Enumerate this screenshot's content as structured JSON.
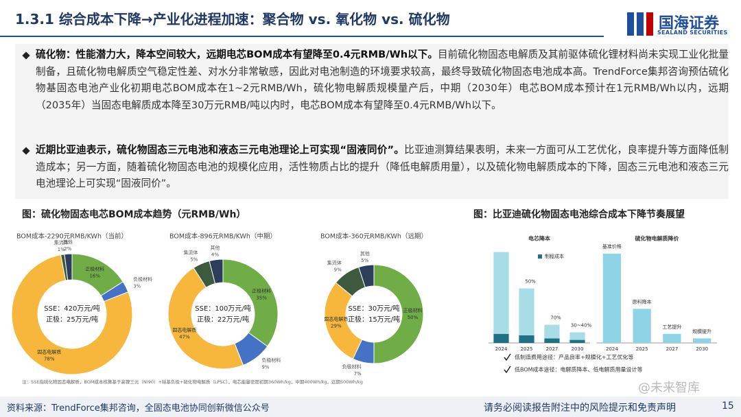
{
  "header": {
    "title": "1.3.1 综合成本下降→产业化进程加速：聚合物 vs. 氧化物 vs. 硫化物",
    "logo_cn": "国海证券",
    "logo_en": "SEALAND SECURITIES"
  },
  "bullets": [
    {
      "lead": "硫化物：性能潜力大，降本空间较大，远期电芯BOM成本有望降至0.4元RMB/Wh以下。",
      "text": "目前硫化物固态电解质及其前驱体硫化锂材料尚未实现工业化批量制备，且硫化物电解质空气稳定性差、对水分非常敏感，因此对电池制造的环境要求较高，最终导致硫化物固态电池成本高。TrendForce集邦咨询预估硫化物基固态电池产业化初期电芯BOM成本在1~2元RMB/Wh，硫化物电解质规模量产后，中期（2030年）电芯BOM成本预计在1元RMB/Wh以内，远期（2035年）当固态电解质成本降至30万元RMB/吨以内时，电芯BOM成本有望降至0.4元RMB/Wh以下。"
    },
    {
      "lead": "近期比亚迪表示，硫化物固态三元电池和液态三元电池理论上可实现“固液同价”。",
      "text": "比亚迪测算结果表明，未来一方面可从工艺优化，良率提升等方面降低制造成本；另一方面，随着硫化物固态电池的规模化应用，活性物质占比的提升（降低电解质用量），以及硫化物电解质成本的下降，固态三元电池和液态三元电池理论上可实现“固液同价”。"
    }
  ],
  "figures": [
    {
      "title": "图：硫化物固态电芯BOM成本趋势（元RMB/Wh）",
      "note": "注：SSE指硫化物固态电解质，BOM成本核算基于高镍三元（NI90）+硅基负极+硫化物电解质（LPSC），电芯能量密度初期360Wh/kg，中期400Wh/kg，远期500Wh/kg"
    },
    {
      "title": "图：比亚迪硫化物固态电池综合成本下降节奏展望",
      "notes": [
        "低制造费用途径：产品良率+规模化+工艺优化等",
        "低BOM成本途径：电解质降本、低电解质用量设计等"
      ]
    }
  ],
  "chart_data": [
    {
      "type": "donut",
      "subtitle": "BOM成本-2290元RMB/KWh（当前）",
      "center_text": [
        "SSE：420万元/吨",
        "正极：25万元/吨"
      ],
      "labels": [
        "正极材料",
        "负极材料",
        "固态电解质",
        "集流体",
        "其他"
      ],
      "values": [
        16,
        3,
        78,
        1,
        2
      ],
      "value_labels": [
        "16%",
        "3%",
        "78%",
        "1%",
        "2%"
      ],
      "colors": [
        "#70ad47",
        "#4472c4",
        "#f6b73c",
        "#3d5a3f",
        "#2c3e5a"
      ]
    },
    {
      "type": "donut",
      "subtitle": "BOM成本-896元RMB/KWh（中期）",
      "center_text": [
        "SSE：100万元/吨",
        "正极：22万元/吨"
      ],
      "labels": [
        "正极材料",
        "负极材料",
        "固态电解质",
        "集流体",
        "其他"
      ],
      "values": [
        35,
        9,
        47,
        5,
        4
      ],
      "value_labels": [
        "35%",
        "9%",
        "47%",
        "5%",
        "4%"
      ],
      "colors": [
        "#70ad47",
        "#4472c4",
        "#f6b73c",
        "#3d5a3f",
        "#2c3e5a"
      ]
    },
    {
      "type": "donut",
      "subtitle": "BOM成本-360元RMB/KWh（远期）",
      "center_text": [
        "SSE：30万元/吨",
        "正极：15万元/吨"
      ],
      "labels": [
        "正极材料",
        "负极材料",
        "固态电解质",
        "集流体",
        "其他"
      ],
      "values": [
        50,
        7,
        29,
        9,
        5
      ],
      "value_labels": [
        "50%",
        "7%",
        "29%",
        "9%",
        "5%"
      ],
      "colors": [
        "#70ad47",
        "#4472c4",
        "#f6b73c",
        "#3d5a3f",
        "#2c3e5a"
      ]
    },
    {
      "type": "bar",
      "title": "电芯降本",
      "categories": [
        "2024",
        "2025",
        "2027",
        "2030"
      ],
      "ylim": [
        0,
        125
      ],
      "series": [
        {
          "name": "制程成本",
          "color": "#1f7183",
          "values": [
            12,
            10,
            6,
            4
          ]
        },
        {
          "color": "#a8dde8",
          "values": [
            108,
            62,
            18,
            10
          ]
        }
      ],
      "annotations": [
        null,
        "50%",
        "70%",
        "30~40%"
      ]
    },
    {
      "type": "bar",
      "title": "硫化物电解质降价",
      "categories": [
        "2024",
        "2025",
        "2027",
        "2030"
      ],
      "ylim": [
        0,
        125
      ],
      "series": [
        {
          "color": "#8fd3e6",
          "values": [
            118,
            45,
            12,
            6
          ]
        }
      ],
      "annotations": [
        "基准价格",
        "原料降本",
        "工艺提升",
        "规模提升"
      ]
    }
  ],
  "watermark": "@未来智库",
  "footer": {
    "source": "资料来源：TrendForce集邦咨询，全固态电池协同创新微信公众号",
    "disclaimer": "请务必阅读报告附注中的风险提示和免责声明",
    "page": 15
  }
}
